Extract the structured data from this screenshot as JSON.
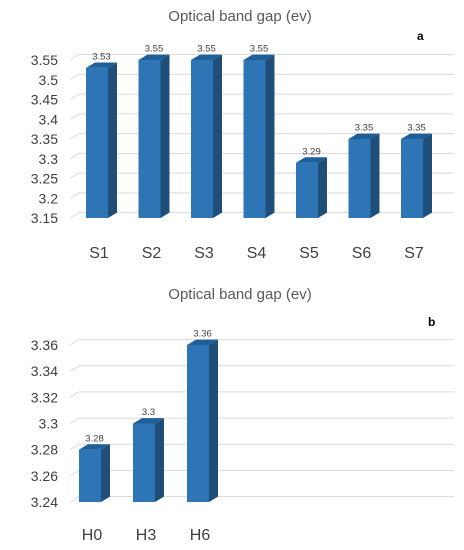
{
  "chart_data": [
    {
      "type": "bar",
      "title": "Optical band gap (ev)",
      "panel_label": "a",
      "categories": [
        "S1",
        "S2",
        "S3",
        "S4",
        "S5",
        "S6",
        "S7"
      ],
      "values": [
        3.53,
        3.55,
        3.55,
        3.55,
        3.29,
        3.35,
        3.35
      ],
      "value_labels": [
        "3.53",
        "3.55",
        "3.55",
        "3.55",
        "3.29",
        "3.35",
        "3.35"
      ],
      "yticks": [
        "3.15",
        "3.2",
        "3.25",
        "3.3",
        "3.35",
        "3.4",
        "3.45",
        "3.5",
        "3.55"
      ],
      "ylim": [
        3.15,
        3.55
      ],
      "xlabel": "",
      "ylabel": "",
      "grid": true,
      "legend": "none",
      "bar_color": "#2e75b6",
      "bar_side_color": "#1f4e79",
      "bar_top_color": "#1f5f99"
    },
    {
      "type": "bar",
      "title": "Optical band gap (ev)",
      "panel_label": "b",
      "categories": [
        "H0",
        "H3",
        "H6"
      ],
      "values": [
        3.28,
        3.3,
        3.36
      ],
      "value_labels": [
        "3.28",
        "3.3",
        "3.36"
      ],
      "yticks": [
        "3.24",
        "3.26",
        "3.28",
        "3.3",
        "3.32",
        "3.34",
        "3.36"
      ],
      "ylim": [
        3.24,
        3.36
      ],
      "xlabel": "",
      "ylabel": "",
      "grid": true,
      "legend": "none",
      "bar_color": "#2e75b6",
      "bar_side_color": "#1f4e79",
      "bar_top_color": "#1f5f99"
    }
  ]
}
